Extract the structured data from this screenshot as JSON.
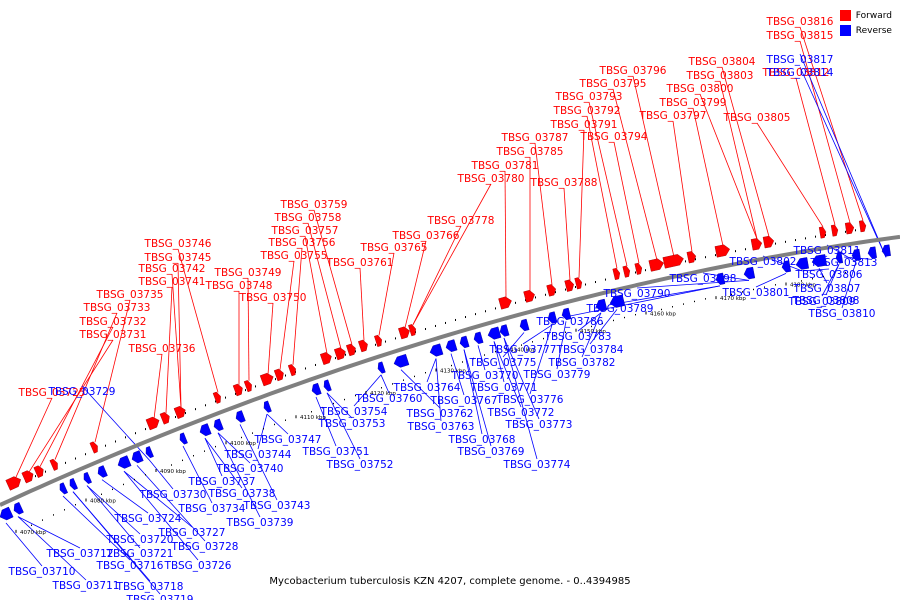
{
  "caption": "Mycobacterium tuberculosis KZN 4207, complete genome. - 0..4394985",
  "legend": {
    "forward": "Forward",
    "reverse": "Reverse"
  },
  "colors": {
    "forward": "#ff0000",
    "reverse": "#0000ff",
    "backbone": "#808080"
  },
  "axis_ticks": [
    "4070 kbp",
    "4080 kbp",
    "4090 kbp",
    "4100 kbp",
    "4110 kbp",
    "4120 kbp",
    "4130 kbp",
    "4140 kbp",
    "4150 kbp",
    "4160 kbp",
    "4170 kbp",
    "4180 kbp"
  ],
  "forward_genes": [
    "TBSG_03725",
    "TBSG_03731",
    "TBSG_03732",
    "TBSG_03733",
    "TBSG_03735",
    "TBSG_03736",
    "TBSG_03741",
    "TBSG_03742",
    "TBSG_03745",
    "TBSG_03746",
    "TBSG_03748",
    "TBSG_03749",
    "TBSG_03750",
    "TBSG_03755",
    "TBSG_03756",
    "TBSG_03757",
    "TBSG_03758",
    "TBSG_03759",
    "TBSG_03761",
    "TBSG_03765",
    "TBSG_03766",
    "TBSG_03778",
    "TBSG_03780",
    "TBSG_03781",
    "TBSG_03785",
    "TBSG_03787",
    "TBSG_03788",
    "TBSG_03791",
    "TBSG_03792",
    "TBSG_03793",
    "TBSG_03794",
    "TBSG_03795",
    "TBSG_03796",
    "TBSG_03797",
    "TBSG_03799",
    "TBSG_03800",
    "TBSG_03803",
    "TBSG_03804",
    "TBSG_03805",
    "TBSG_03812",
    "TBSG_03815",
    "TBSG_03816"
  ],
  "reverse_genes": [
    "TBSG_03710",
    "TBSG_03711",
    "TBSG_03712",
    "TBSG_03716",
    "TBSG_03718",
    "TBSG_03719",
    "TBSG_03720",
    "TBSG_03721",
    "TBSG_03724",
    "TBSG_03726",
    "TBSG_03727",
    "TBSG_03728",
    "TBSG_03729",
    "TBSG_03730",
    "TBSG_03734",
    "TBSG_03737",
    "TBSG_03738",
    "TBSG_03739",
    "TBSG_03740",
    "TBSG_03743",
    "TBSG_03744",
    "TBSG_03747",
    "TBSG_03751",
    "TBSG_03752",
    "TBSG_03753",
    "TBSG_03754",
    "TBSG_03760",
    "TBSG_03762",
    "TBSG_03763",
    "TBSG_03764",
    "TBSG_03767",
    "TBSG_03768",
    "TBSG_03769",
    "TBSG_03770",
    "TBSG_03771",
    "TBSG_03772",
    "TBSG_03773",
    "TBSG_03774",
    "TBSG_03775",
    "TBSG_03776",
    "TBSG_03777",
    "TBSG_03779",
    "TBSG_03782",
    "TBSG_03783",
    "TBSG_03784",
    "TBSG_03786",
    "TBSG_03789",
    "TBSG_03790",
    "TBSG_03798",
    "TBSG_03801",
    "TBSG_03802",
    "TBSG_03806",
    "TBSG_03807",
    "TBSG_03808",
    "TBSG_03809",
    "TBSG_03810",
    "TBSG_03811",
    "TBSG_03813",
    "TBSG_03814",
    "TBSG_03817"
  ]
}
